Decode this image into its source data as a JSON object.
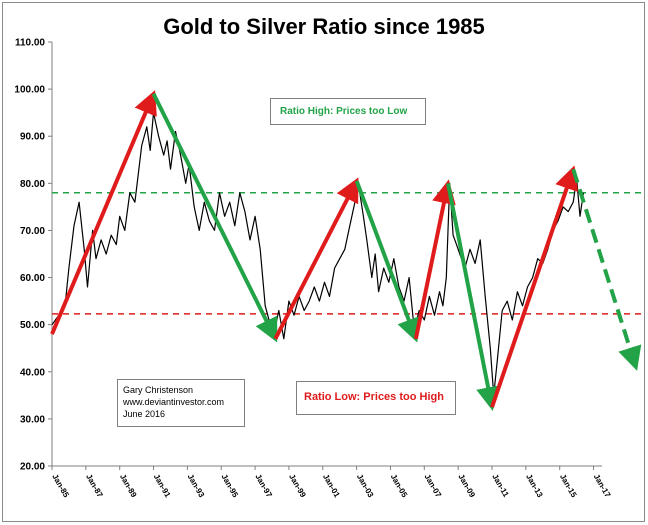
{
  "chart_data": {
    "type": "line",
    "title": "Gold to Silver Ratio since 1985",
    "xlabel": "",
    "ylabel": "",
    "ylim": [
      20,
      110
    ],
    "yticks": [
      "20.00",
      "30.00",
      "40.00",
      "50.00",
      "60.00",
      "70.00",
      "80.00",
      "90.00",
      "100.00",
      "110.00"
    ],
    "xlim": [
      1985,
      2017.5
    ],
    "xticks": [
      "Jan-85",
      "Jan-87",
      "Jan-89",
      "Jan-91",
      "Jan-93",
      "Jan-95",
      "Jan-97",
      "Jan-99",
      "Jan-01",
      "Jan-03",
      "Jan-05",
      "Jan-07",
      "Jan-09",
      "Jan-11",
      "Jan-13",
      "Jan-15",
      "Jan-17"
    ],
    "grid": false,
    "series": [
      {
        "color": "#000000",
        "x": [
          1985.0,
          1985.4,
          1985.8,
          1986.0,
          1986.3,
          1986.6,
          1986.9,
          1987.1,
          1987.4,
          1987.6,
          1987.9,
          1988.2,
          1988.5,
          1988.8,
          1989.0,
          1989.3,
          1989.6,
          1989.9,
          1990.1,
          1990.3,
          1990.6,
          1990.8,
          1991.0,
          1991.3,
          1991.6,
          1991.8,
          1992.0,
          1992.3,
          1992.6,
          1992.9,
          1993.1,
          1993.4,
          1993.7,
          1994.0,
          1994.3,
          1994.6,
          1994.9,
          1995.2,
          1995.5,
          1995.8,
          1996.1,
          1996.4,
          1996.7,
          1997.0,
          1997.3,
          1997.6,
          1997.9,
          1998.1,
          1998.4,
          1998.7,
          1999.0,
          1999.3,
          1999.6,
          1999.9,
          2000.2,
          2000.5,
          2000.8,
          2001.1,
          2001.4,
          2001.7,
          2002.0,
          2002.3,
          2002.6,
          2002.9,
          2003.1,
          2003.4,
          2003.6,
          2003.9,
          2004.1,
          2004.3,
          2004.6,
          2004.9,
          2005.2,
          2005.5,
          2005.8,
          2006.1,
          2006.4,
          2006.7,
          2007.0,
          2007.3,
          2007.6,
          2007.9,
          2008.1,
          2008.3,
          2008.5,
          2008.7,
          2008.9,
          2009.1,
          2009.4,
          2009.7,
          2010.0,
          2010.3,
          2010.6,
          2010.9,
          2011.1,
          2011.3,
          2011.6,
          2011.9,
          2012.2,
          2012.5,
          2012.8,
          2013.1,
          2013.4,
          2013.7,
          2014.0,
          2014.3,
          2014.6,
          2014.9,
          2015.2,
          2015.5,
          2015.8,
          2016.0,
          2016.2,
          2016.4
        ],
        "y": [
          50,
          52,
          55,
          62,
          71,
          76,
          66,
          58,
          70,
          64,
          68,
          65,
          69,
          67,
          73,
          70,
          78,
          76,
          82,
          88,
          92,
          87,
          95,
          90,
          86,
          89,
          83,
          91,
          86,
          80,
          84,
          75,
          70,
          76,
          72,
          70,
          78,
          73,
          76,
          71,
          78,
          74,
          68,
          73,
          66,
          54,
          50,
          48,
          53,
          47,
          55,
          52,
          56,
          53,
          55,
          58,
          55,
          59,
          56,
          62,
          64,
          66,
          71,
          76,
          80,
          73,
          68,
          60,
          65,
          57,
          62,
          59,
          64,
          58,
          55,
          60,
          49,
          53,
          51,
          56,
          52,
          57,
          54,
          60,
          80,
          69,
          67,
          65,
          62,
          66,
          63,
          68,
          56,
          45,
          35,
          42,
          53,
          55,
          51,
          57,
          54,
          58,
          60,
          64,
          63,
          66,
          70,
          72,
          75,
          74,
          76,
          81,
          73,
          78
        ]
      }
    ],
    "arrows": [
      {
        "color": "#e01b1b",
        "from": [
          1985.0,
          48
        ],
        "to": [
          1991.0,
          99
        ]
      },
      {
        "color": "#22a347",
        "from": [
          1991.0,
          99
        ],
        "to": [
          1998.2,
          47
        ]
      },
      {
        "color": "#e01b1b",
        "from": [
          1998.2,
          47
        ],
        "to": [
          2003.0,
          80.5
        ]
      },
      {
        "color": "#22a347",
        "from": [
          2003.0,
          80.5
        ],
        "to": [
          2006.5,
          47
        ]
      },
      {
        "color": "#e01b1b",
        "from": [
          2006.5,
          47
        ],
        "to": [
          2008.4,
          80
        ]
      },
      {
        "color": "#22a347",
        "from": [
          2008.4,
          80
        ],
        "to": [
          2011.0,
          32.5
        ]
      },
      {
        "color": "#e01b1b",
        "from": [
          2011.0,
          32.5
        ],
        "to": [
          2015.8,
          83
        ]
      },
      {
        "color": "#22a347",
        "from": [
          2015.8,
          83
        ],
        "to": [
          2019.5,
          41
        ],
        "dashed": true
      }
    ],
    "hlines": [
      {
        "y": 78,
        "color": "#22a347"
      },
      {
        "y": 52.3,
        "color": "#e01b1b"
      }
    ],
    "annotations": {
      "ratio_high": "Ratio High:  Prices too Low",
      "ratio_low": "Ratio Low:  Prices too High",
      "credit": [
        "Gary Christenson",
        "www.deviantinvestor.com",
        "June 2016"
      ]
    }
  }
}
